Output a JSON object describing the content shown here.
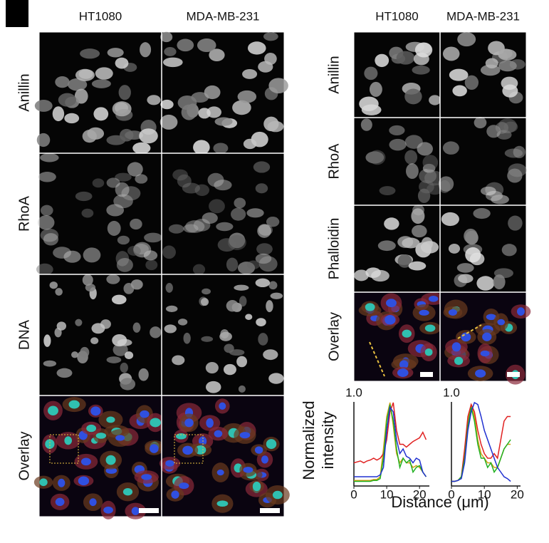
{
  "panel_left": {
    "columns": [
      "HT1080",
      "MDA-MB-231"
    ],
    "rows": [
      "Anillin",
      "RhoA",
      "DNA",
      "Overlay"
    ]
  },
  "panel_right": {
    "columns": [
      "HT1080",
      "MDA-MB-231"
    ],
    "rows": [
      "Anillin",
      "RhoA",
      "Phalloidin",
      "Overlay"
    ]
  },
  "chart_data": [
    {
      "type": "line",
      "ylabel": [
        "Normalized",
        "intensity"
      ],
      "xlabel": "Distance (μm)",
      "x": [
        0,
        1,
        2,
        3,
        4,
        5,
        6,
        7,
        8,
        9,
        10,
        11,
        12,
        13,
        14,
        15,
        16,
        17,
        18,
        19,
        20,
        21,
        22
      ],
      "xlim": [
        0,
        23
      ],
      "xticks": [
        0,
        10,
        20
      ],
      "ylim": [
        0,
        1
      ],
      "yticks": [
        {
          "value": 1,
          "label": "1.0"
        }
      ],
      "series": [
        {
          "color": "#d4a017",
          "values": [
            0.06,
            0.06,
            0.06,
            0.06,
            0.06,
            0.06,
            0.07,
            0.07,
            0.1,
            0.4,
            0.75,
            0.9,
            0.65,
            0.35,
            0.25,
            0.3,
            0.25,
            0.25,
            0.2,
            0.22,
            0.2,
            0.15,
            0.1
          ]
        },
        {
          "color": "#e02020",
          "values": [
            0.25,
            0.26,
            0.27,
            0.25,
            0.27,
            0.28,
            0.3,
            0.28,
            0.3,
            0.35,
            0.5,
            0.8,
            0.9,
            0.6,
            0.45,
            0.45,
            0.42,
            0.45,
            0.48,
            0.5,
            0.52,
            0.58,
            0.5
          ]
        },
        {
          "color": "#20b020",
          "values": [
            0.05,
            0.05,
            0.05,
            0.05,
            0.05,
            0.05,
            0.06,
            0.06,
            0.08,
            0.3,
            0.7,
            0.88,
            0.7,
            0.4,
            0.2,
            0.3,
            0.25,
            0.28,
            0.15,
            0.2,
            0.22,
            0.15,
            0.1
          ]
        },
        {
          "color": "#2030d0",
          "values": [
            0.1,
            0.1,
            0.1,
            0.1,
            0.1,
            0.1,
            0.1,
            0.1,
            0.12,
            0.2,
            0.6,
            0.85,
            0.8,
            0.5,
            0.35,
            0.4,
            0.32,
            0.3,
            0.25,
            0.3,
            0.28,
            0.15,
            0.1
          ]
        }
      ]
    },
    {
      "type": "line",
      "x": [
        0,
        1,
        2,
        3,
        4,
        5,
        6,
        7,
        8,
        9,
        10,
        11,
        12,
        13,
        14,
        15,
        16,
        17,
        18
      ],
      "xlim": [
        0,
        21
      ],
      "xticks": [
        0,
        10,
        20
      ],
      "ylim": [
        0,
        1
      ],
      "yticks": [
        {
          "value": 1,
          "label": "1.0"
        }
      ],
      "series": [
        {
          "color": "#d4a017",
          "values": [
            0.05,
            0.05,
            0.06,
            0.1,
            0.35,
            0.7,
            0.88,
            0.75,
            0.5,
            0.35,
            0.3,
            0.25,
            0.25,
            0.2,
            0.2,
            0.3,
            0.4,
            0.45,
            0.45
          ]
        },
        {
          "color": "#e02020",
          "values": [
            0.05,
            0.05,
            0.06,
            0.1,
            0.4,
            0.75,
            0.88,
            0.8,
            0.6,
            0.45,
            0.35,
            0.3,
            0.3,
            0.35,
            0.3,
            0.5,
            0.7,
            0.75,
            0.75
          ]
        },
        {
          "color": "#20b020",
          "values": [
            0.05,
            0.05,
            0.06,
            0.1,
            0.3,
            0.65,
            0.85,
            0.7,
            0.45,
            0.3,
            0.3,
            0.2,
            0.25,
            0.15,
            0.2,
            0.3,
            0.4,
            0.45,
            0.5
          ]
        },
        {
          "color": "#2030d0",
          "values": [
            0.05,
            0.05,
            0.06,
            0.08,
            0.25,
            0.6,
            0.8,
            0.9,
            0.88,
            0.75,
            0.6,
            0.5,
            0.4,
            0.3,
            0.2,
            0.15,
            0.1,
            0.08,
            0.05
          ]
        }
      ]
    }
  ]
}
